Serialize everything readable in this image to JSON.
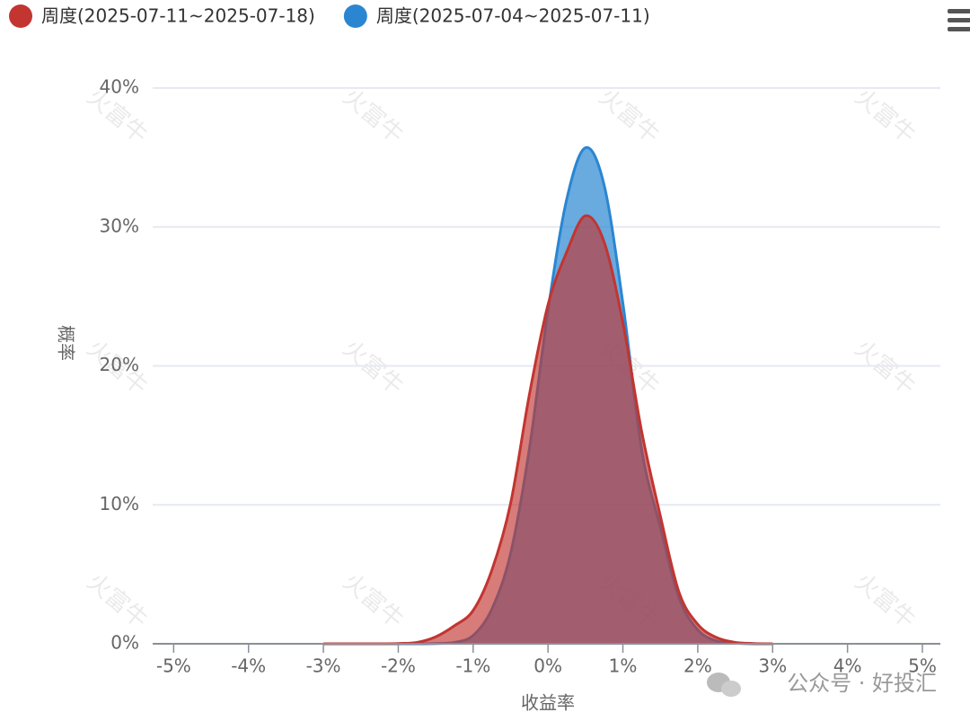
{
  "chart_data": {
    "type": "area",
    "x_label": "收益率",
    "y_label": "概率",
    "x": [
      -3,
      -2.75,
      -2.5,
      -2.25,
      -2,
      -1.75,
      -1.5,
      -1.25,
      -1,
      -0.75,
      -0.5,
      -0.25,
      0,
      0.25,
      0.5,
      0.75,
      1,
      1.25,
      1.5,
      1.75,
      2,
      2.25,
      2.5,
      2.75,
      3
    ],
    "series": [
      {
        "name": "周度(2025-07-11~2025-07-18)",
        "color": "#c23531",
        "values": [
          0,
          0,
          0,
          0,
          0.02,
          0.1,
          0.5,
          1.3,
          2.4,
          5.3,
          10.1,
          17.9,
          24.4,
          28.2,
          30.8,
          28.9,
          23.1,
          15.3,
          9.2,
          3.7,
          1.4,
          0.45,
          0.1,
          0.02,
          0
        ]
      },
      {
        "name": "周度(2025-07-04~2025-07-11)",
        "color": "#2a86d1",
        "values": [
          0,
          0,
          0,
          0,
          0,
          0,
          0.02,
          0.1,
          0.6,
          2.5,
          6.5,
          14,
          24,
          32,
          35.7,
          33,
          24.5,
          14,
          8.4,
          3.3,
          1,
          0.2,
          0.05,
          0,
          0
        ]
      }
    ],
    "xlim": [
      -5.28,
      5.24
    ],
    "ylim": [
      0,
      40
    ],
    "xticks": [
      {
        "value": -5,
        "label": "-5%"
      },
      {
        "value": -4,
        "label": "-4%"
      },
      {
        "value": -3,
        "label": "-3%"
      },
      {
        "value": -2,
        "label": "-2%"
      },
      {
        "value": -1,
        "label": "-1%"
      },
      {
        "value": 0,
        "label": "0%"
      },
      {
        "value": 1,
        "label": "1%"
      },
      {
        "value": 2,
        "label": "2%"
      },
      {
        "value": 3,
        "label": "3%"
      },
      {
        "value": 4,
        "label": "4%"
      },
      {
        "value": 5,
        "label": "5%"
      }
    ],
    "yticks": [
      {
        "value": 0,
        "label": "0%"
      },
      {
        "value": 10,
        "label": "10%"
      },
      {
        "value": 20,
        "label": "20%"
      },
      {
        "value": 30,
        "label": "30%"
      },
      {
        "value": 40,
        "label": "40%"
      }
    ],
    "grid": true,
    "legend": "top-left",
    "watermark": "火富牛",
    "source_watermark": "公众号 · 好投汇"
  }
}
